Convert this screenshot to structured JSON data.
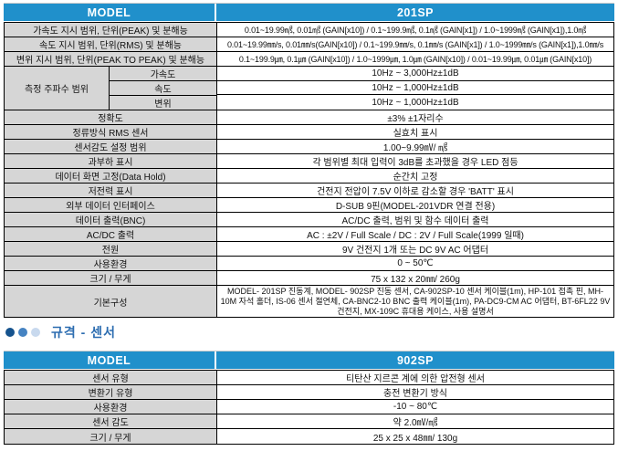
{
  "colors": {
    "header_blue": "#2090cb",
    "label_gray": "#d6d6d6",
    "section_blue": "#2b6cb0",
    "bullet_dark": "#16538e",
    "bullet_mid": "#4583c2",
    "bullet_light": "#c8d9ee"
  },
  "table_main": {
    "header": {
      "model_label": "MODEL",
      "model_value": "201SP"
    },
    "rows_top": [
      {
        "label": "가속도 지시 범위, 단위(PEAK) 및 분해능",
        "value": "0.01~19.99㎨, 0.01㎨ (GAIN[x10]) / 0.1~199.9㎨, 0.1㎨  (GAIN[x1]) / 1.0~1999㎨ (GAIN[x1]),1.0㎨"
      },
      {
        "label": "속도 지시 범위, 단위(RMS) 및 분해능",
        "value": "0.01~19.99㎜/s, 0.01㎜/s(GAIN[x10]) / 0.1~199.9㎜/s, 0.1㎜/s  (GAIN[x1]) / 1.0~1999㎜/s (GAIN[x1]),1.0㎜/s"
      },
      {
        "label": "변위 지시 범위, 단위(PEAK TO PEAK) 및 분해능",
        "value": "0.1~199.9㎛, 0.1㎛ (GAIN[x10])  / 1.0~1999㎛, 1.0㎛ (GAIN[x10]) / 0.01~19.99㎛, 0.01㎛ (GAIN[x10])"
      }
    ],
    "freq_group": {
      "label": "측정 주파수 범위",
      "subrows": [
        {
          "label": "가속도",
          "value": "10Hz ~ 3,000Hz±1dB"
        },
        {
          "label": "속도",
          "value": "10Hz ~ 1,000Hz±1dB"
        },
        {
          "label": "변위",
          "value": "10Hz ~ 1,000Hz±1dB"
        }
      ]
    },
    "rows_bottom": [
      {
        "label": "정확도",
        "value": "±3% ±1자리수"
      },
      {
        "label": "정류방식 RMS 센서",
        "value": "실효치 표시"
      },
      {
        "label": "센서감도 설정 범위",
        "value": "1.00~9.99㎷/ ㎨"
      },
      {
        "label": "과부하 표시",
        "value": "각 범위별 최대 입력이 3dB를 초과했을 경우 LED 점등"
      },
      {
        "label": "데이터 화면 고정(Data Hold)",
        "value": "순간치 고정"
      },
      {
        "label": "저전력 표시",
        "value": "건전지 전압이 7.5V 이하로 감소할 경우 'BATT' 표시"
      },
      {
        "label": "외부 데이터 인터페이스",
        "value": "D-SUB 9핀(MODEL-201VDR 연결 전용)"
      },
      {
        "label": "데이터 출력(BNC)",
        "value": "AC/DC 출력, 범위 및 함수 데이터 출력"
      },
      {
        "label": "AC/DC 출력",
        "value": "AC : ±2V / Full Scale / DC : 2V / Full Scale(1999 일때)"
      },
      {
        "label": "전원",
        "value": "9V 건전지 1개 또는 DC 9V AC 어댑터"
      },
      {
        "label": "사용환경",
        "value": "0 ~ 50℃"
      },
      {
        "label": "크기 / 무게",
        "value": "75 x 132 x 20㎜/ 260g"
      },
      {
        "label": "기본구성",
        "value": "MODEL- 201SP 진동계, MODEL- 902SP 진동 센서, CA-902SP-10 센서 케이블(1m), HP-101 접촉 핀, MH-10M 자석 홀더, IS-06 센서 절연체, CA-BNC2-10 BNC 출력 케이블(1m), PA-DC9-CM AC 어댑터, BT-6FL22 9V 건전지, MX-109C 휴대용 케이스, 사용 설명서"
      }
    ]
  },
  "section": {
    "title": "규격 - 센서"
  },
  "table_sensor": {
    "header": {
      "model_label": "MODEL",
      "model_value": "902SP"
    },
    "rows": [
      {
        "label": "센서 유형",
        "value": "티탄산 지르콘 계에 의한 압전형 센서"
      },
      {
        "label": "변환기 유형",
        "value": "충전 변환기 방식"
      },
      {
        "label": "사용환경",
        "value": "-10 ~ 80℃"
      },
      {
        "label": "센서 감도",
        "value": "약 2.0㎷/㎨"
      },
      {
        "label": "크기 / 무게",
        "value": "25 x 25 x 48㎜/ 130g"
      }
    ]
  }
}
